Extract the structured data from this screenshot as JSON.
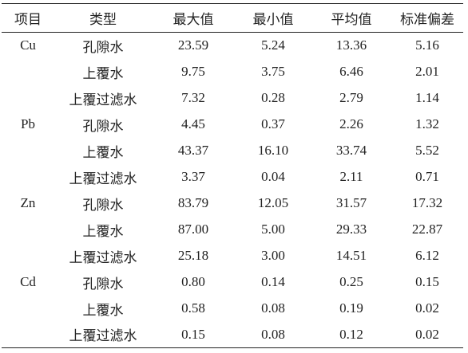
{
  "table": {
    "header": [
      "项目",
      "类型",
      "最大值",
      "最小值",
      "平均值",
      "标准偏差"
    ],
    "groups": [
      {
        "item": "Cu",
        "rows": [
          [
            "孔隙水",
            "23.59",
            "5.24",
            "13.36",
            "5.16"
          ],
          [
            "上覆水",
            "9.75",
            "3.75",
            "6.46",
            "2.01"
          ],
          [
            "上覆过滤水",
            "7.32",
            "0.28",
            "2.79",
            "1.14"
          ]
        ]
      },
      {
        "item": "Pb",
        "rows": [
          [
            "孔隙水",
            "4.45",
            "0.37",
            "2.26",
            "1.32"
          ],
          [
            "上覆水",
            "43.37",
            "16.10",
            "33.74",
            "5.52"
          ],
          [
            "上覆过滤水",
            "3.37",
            "0.04",
            "2.11",
            "0.71"
          ]
        ]
      },
      {
        "item": "Zn",
        "rows": [
          [
            "孔隙水",
            "83.79",
            "12.05",
            "31.57",
            "17.32"
          ],
          [
            "上覆水",
            "87.00",
            "5.00",
            "29.33",
            "22.87"
          ],
          [
            "上覆过滤水",
            "25.18",
            "3.00",
            "14.51",
            "6.12"
          ]
        ]
      },
      {
        "item": "Cd",
        "rows": [
          [
            "孔隙水",
            "0.80",
            "0.14",
            "0.25",
            "0.15"
          ],
          [
            "上覆水",
            "0.58",
            "0.08",
            "0.19",
            "0.02"
          ],
          [
            "上覆过滤水",
            "0.15",
            "0.08",
            "0.12",
            "0.02"
          ]
        ]
      }
    ]
  }
}
